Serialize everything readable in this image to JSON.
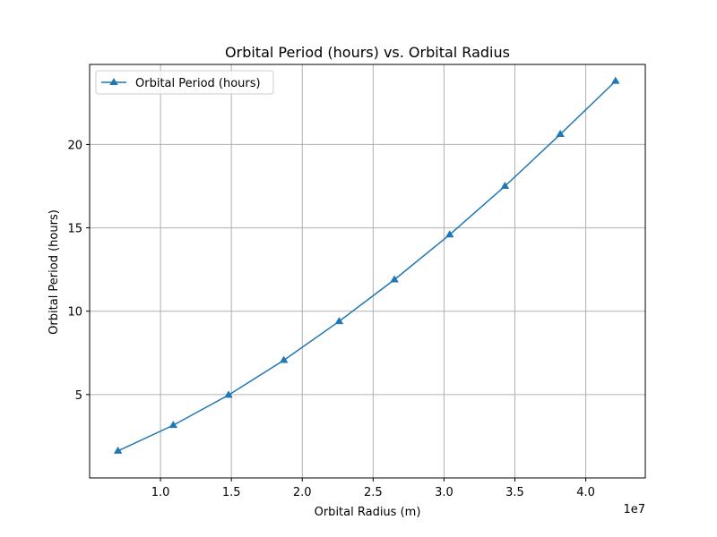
{
  "chart_data": {
    "type": "line",
    "title": "Orbital Period (hours) vs. Orbital Radius",
    "xlabel": "Orbital Radius (m)",
    "ylabel": "Orbital Period (hours)",
    "x_offset_label": "1e7",
    "xlim": [
      5000000,
      44200000
    ],
    "ylim": [
      0,
      24.8
    ],
    "x_ticks": [
      10000000,
      15000000,
      20000000,
      25000000,
      30000000,
      35000000,
      40000000
    ],
    "x_tick_labels": [
      "1.0",
      "1.5",
      "2.0",
      "2.5",
      "3.0",
      "3.5",
      "4.0"
    ],
    "y_ticks": [
      5,
      10,
      15,
      20
    ],
    "y_tick_labels": [
      "5",
      "10",
      "15",
      "20"
    ],
    "grid": true,
    "legend_position": "upper-left",
    "series": [
      {
        "name": "Orbital Period (hours)",
        "color": "#1f77b4",
        "marker": "triangle-up",
        "x": [
          7000000,
          10900000,
          14800000,
          18700000,
          22600000,
          26500000,
          30400000,
          34300000,
          38200000,
          42100000
        ],
        "y": [
          1.62,
          3.16,
          4.97,
          7.06,
          9.39,
          11.89,
          14.59,
          17.5,
          20.61,
          23.8
        ]
      }
    ]
  }
}
